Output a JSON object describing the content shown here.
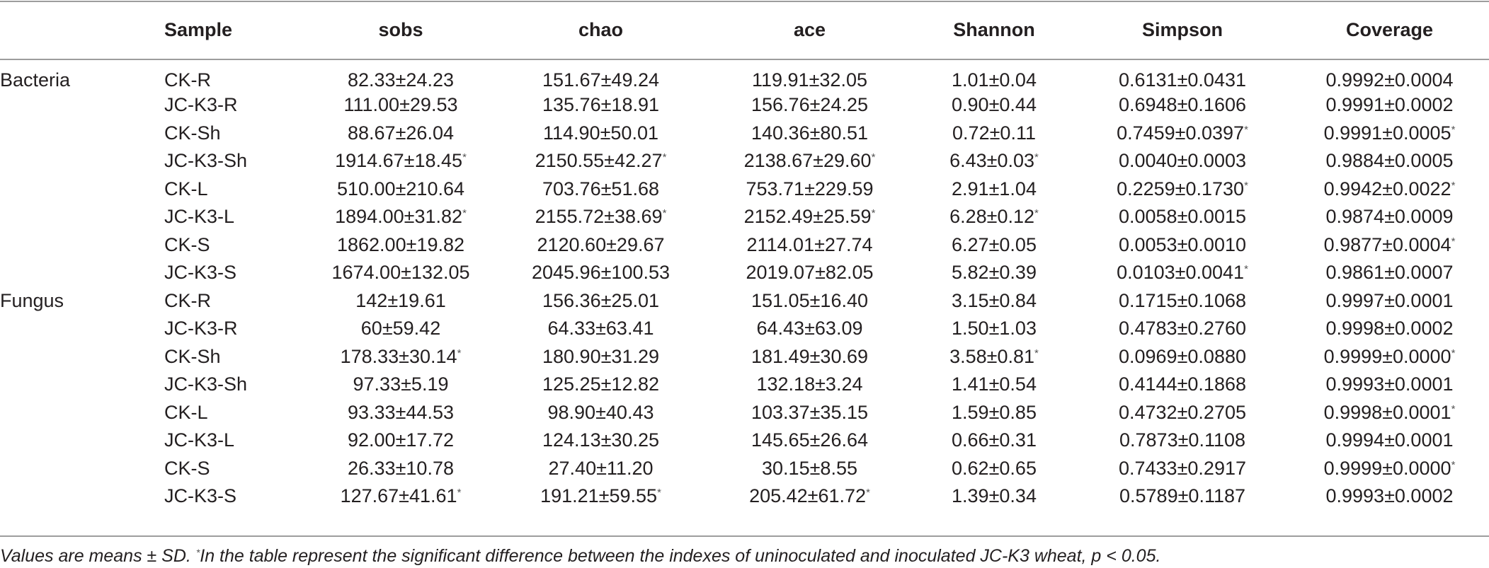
{
  "headers": [
    "",
    "Sample",
    "sobs",
    "chao",
    "ace",
    "Shannon",
    "Simpson",
    "Coverage"
  ],
  "pm": "±",
  "rows": [
    {
      "group": "Bacteria",
      "sample": "CK-R",
      "cells": [
        [
          "82.33",
          "24.23",
          ""
        ],
        [
          "151.67",
          "49.24",
          ""
        ],
        [
          "119.91",
          "32.05",
          ""
        ],
        [
          "1.01",
          "0.04",
          ""
        ],
        [
          "0.6131",
          "0.0431",
          ""
        ],
        [
          "0.9992",
          "0.0004",
          ""
        ]
      ]
    },
    {
      "group": "",
      "sample": "JC-K3-R",
      "cells": [
        [
          "111.00",
          "29.53",
          ""
        ],
        [
          "135.76",
          "18.91",
          ""
        ],
        [
          "156.76",
          "24.25",
          ""
        ],
        [
          "0.90",
          "0.44",
          ""
        ],
        [
          "0.6948",
          "0.1606",
          ""
        ],
        [
          "0.9991",
          "0.0002",
          ""
        ]
      ]
    },
    {
      "group": "",
      "sample": "CK-Sh",
      "cells": [
        [
          "88.67",
          "26.04",
          ""
        ],
        [
          "114.90",
          "50.01",
          ""
        ],
        [
          "140.36",
          "80.51",
          ""
        ],
        [
          "0.72",
          "0.11",
          ""
        ],
        [
          "0.7459",
          "0.0397",
          "*"
        ],
        [
          "0.9991",
          "0.0005",
          "*"
        ]
      ]
    },
    {
      "group": "",
      "sample": "JC-K3-Sh",
      "cells": [
        [
          "1914.67",
          "18.45",
          "*"
        ],
        [
          "2150.55",
          "42.27",
          "*"
        ],
        [
          "2138.67",
          "29.60",
          "*"
        ],
        [
          "6.43",
          "0.03",
          "*"
        ],
        [
          "0.0040",
          "0.0003",
          ""
        ],
        [
          "0.9884",
          "0.0005",
          ""
        ]
      ]
    },
    {
      "group": "",
      "sample": "CK-L",
      "cells": [
        [
          "510.00",
          "210.64",
          ""
        ],
        [
          "703.76",
          "51.68",
          ""
        ],
        [
          "753.71",
          "229.59",
          ""
        ],
        [
          "2.91",
          "1.04",
          ""
        ],
        [
          "0.2259",
          "0.1730",
          "*"
        ],
        [
          "0.9942",
          "0.0022",
          "*"
        ]
      ]
    },
    {
      "group": "",
      "sample": "JC-K3-L",
      "cells": [
        [
          "1894.00",
          "31.82",
          "*"
        ],
        [
          "2155.72",
          "38.69",
          "*"
        ],
        [
          "2152.49",
          "25.59",
          "*"
        ],
        [
          "6.28",
          "0.12",
          "*"
        ],
        [
          "0.0058",
          "0.0015",
          ""
        ],
        [
          "0.9874",
          "0.0009",
          ""
        ]
      ]
    },
    {
      "group": "",
      "sample": "CK-S",
      "cells": [
        [
          "1862.00",
          "19.82",
          ""
        ],
        [
          "2120.60",
          "29.67",
          ""
        ],
        [
          "2114.01",
          "27.74",
          ""
        ],
        [
          "6.27",
          "0.05",
          ""
        ],
        [
          "0.0053",
          "0.0010",
          ""
        ],
        [
          "0.9877",
          "0.0004",
          "*"
        ]
      ]
    },
    {
      "group": "",
      "sample": "JC-K3-S",
      "cells": [
        [
          "1674.00",
          "132.05",
          ""
        ],
        [
          "2045.96",
          "100.53",
          ""
        ],
        [
          "2019.07",
          "82.05",
          ""
        ],
        [
          "5.82",
          "0.39",
          ""
        ],
        [
          "0.0103",
          "0.0041",
          "*"
        ],
        [
          "0.9861",
          "0.0007",
          ""
        ]
      ]
    },
    {
      "group": "Fungus",
      "sample": "CK-R",
      "cells": [
        [
          "142",
          "19.61",
          ""
        ],
        [
          "156.36",
          "25.01",
          ""
        ],
        [
          "151.05",
          "16.40",
          ""
        ],
        [
          "3.15",
          "0.84",
          ""
        ],
        [
          "0.1715",
          "0.1068",
          ""
        ],
        [
          "0.9997",
          "0.0001",
          ""
        ]
      ]
    },
    {
      "group": "",
      "sample": "JC-K3-R",
      "cells": [
        [
          "60",
          "59.42",
          ""
        ],
        [
          "64.33",
          "63.41",
          ""
        ],
        [
          "64.43",
          "63.09",
          ""
        ],
        [
          "1.50",
          "1.03",
          ""
        ],
        [
          "0.4783",
          "0.2760",
          ""
        ],
        [
          "0.9998",
          "0.0002",
          ""
        ]
      ]
    },
    {
      "group": "",
      "sample": "CK-Sh",
      "cells": [
        [
          "178.33",
          "30.14",
          "*"
        ],
        [
          "180.90",
          "31.29",
          ""
        ],
        [
          "181.49",
          "30.69",
          ""
        ],
        [
          "3.58",
          "0.81",
          "*"
        ],
        [
          "0.0969",
          "0.0880",
          ""
        ],
        [
          "0.9999",
          "0.0000",
          "*"
        ]
      ]
    },
    {
      "group": "",
      "sample": "JC-K3-Sh",
      "cells": [
        [
          "97.33",
          "5.19",
          ""
        ],
        [
          "125.25",
          "12.82",
          ""
        ],
        [
          "132.18",
          "3.24",
          ""
        ],
        [
          "1.41",
          "0.54",
          ""
        ],
        [
          "0.4144",
          "0.1868",
          ""
        ],
        [
          "0.9993",
          "0.0001",
          ""
        ]
      ]
    },
    {
      "group": "",
      "sample": "CK-L",
      "cells": [
        [
          "93.33",
          "44.53",
          ""
        ],
        [
          "98.90",
          "40.43",
          ""
        ],
        [
          "103.37",
          "35.15",
          ""
        ],
        [
          "1.59",
          "0.85",
          ""
        ],
        [
          "0.4732",
          "0.2705",
          ""
        ],
        [
          "0.9998",
          "0.0001",
          "*"
        ]
      ]
    },
    {
      "group": "",
      "sample": "JC-K3-L",
      "cells": [
        [
          "92.00",
          "17.72",
          ""
        ],
        [
          "124.13",
          "30.25",
          ""
        ],
        [
          "145.65",
          "26.64",
          ""
        ],
        [
          "0.66",
          "0.31",
          ""
        ],
        [
          "0.7873",
          "0.1108",
          ""
        ],
        [
          "0.9994",
          "0.0001",
          ""
        ]
      ]
    },
    {
      "group": "",
      "sample": "CK-S",
      "cells": [
        [
          "26.33",
          "10.78",
          ""
        ],
        [
          "27.40",
          "11.20",
          ""
        ],
        [
          "30.15",
          "8.55",
          ""
        ],
        [
          "0.62",
          "0.65",
          ""
        ],
        [
          "0.7433",
          "0.2917",
          ""
        ],
        [
          "0.9999",
          "0.0000",
          "*"
        ]
      ]
    },
    {
      "group": "",
      "sample": "JC-K3-S",
      "cells": [
        [
          "127.67",
          "41.61",
          "*"
        ],
        [
          "191.21",
          "59.55",
          "*"
        ],
        [
          "205.42",
          "61.72",
          "*"
        ],
        [
          "1.39",
          "0.34",
          ""
        ],
        [
          "0.5789",
          "0.1187",
          ""
        ],
        [
          "0.9993",
          "0.0002",
          ""
        ]
      ]
    }
  ],
  "footnote": {
    "part1": "Values are means ± SD. ",
    "mark": "*",
    "part2": "In the table represent the significant difference between the indexes of uninoculated and inoculated JC-K3 wheat, p < 0.05."
  }
}
